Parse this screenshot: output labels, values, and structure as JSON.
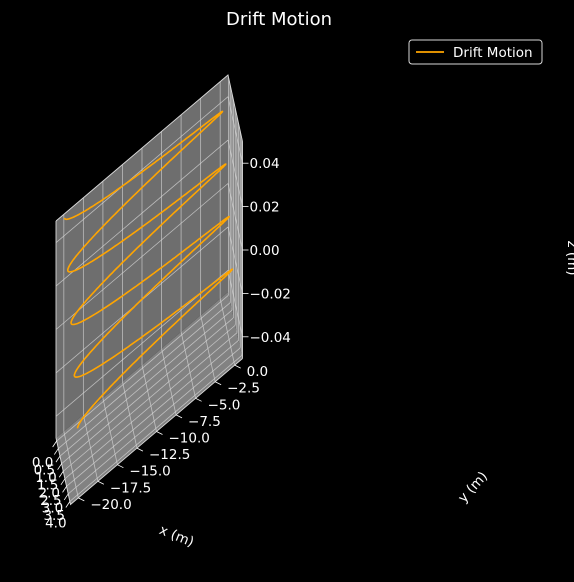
{
  "chart_data": {
    "type": "line3d",
    "title": "Drift Motion",
    "xlabel": "x (m)",
    "ylabel": "y (m)",
    "zlabel": "z (m)",
    "xlim": [
      -0.2,
      4.2
    ],
    "ylim": [
      -21.0,
      1.0
    ],
    "zlim": [
      -0.05,
      0.05
    ],
    "x_ticks": [
      0.0,
      0.5,
      1.0,
      1.5,
      2.0,
      2.5,
      3.0,
      3.5,
      4.0
    ],
    "y_ticks": [
      0.0,
      -2.5,
      -5.0,
      -7.5,
      -10.0,
      -12.5,
      -15.0,
      -17.5,
      -20.0
    ],
    "z_ticks": [
      0.04,
      0.02,
      0.0,
      -0.02,
      -0.04
    ],
    "x_tick_labels": [
      "0.0",
      "0.5",
      "1.0",
      "1.5",
      "2.0",
      "2.5",
      "3.0",
      "3.5",
      "4.0"
    ],
    "y_tick_labels": [
      "0.0",
      "−2.5",
      "−5.0",
      "−7.5",
      "−10.0",
      "−12.5",
      "−15.0",
      "−17.5",
      "−20.0"
    ],
    "z_tick_labels": [
      "0.04",
      "0.02",
      "0.00",
      "−0.02",
      "−0.04"
    ],
    "grid": true,
    "legend_position": "top-right",
    "series": [
      {
        "name": "Drift Motion",
        "color": "#ffa500",
        "parametric": {
          "x": "4 × t",
          "y": "−20 × sin²(πt)… (cycloidal drift)",
          "z": "0",
          "t_range": [
            0,
            1
          ]
        },
        "x_range": [
          0.0,
          4.0
        ],
        "y_range": [
          -20.0,
          0.0
        ],
        "z_value": 0.0,
        "loops": 4
      }
    ]
  },
  "colors": {
    "background": "#000000",
    "pane": "#7f7f7f",
    "grid": "#d6d6d6",
    "line": "#ffa500",
    "text": "#ffffff"
  }
}
